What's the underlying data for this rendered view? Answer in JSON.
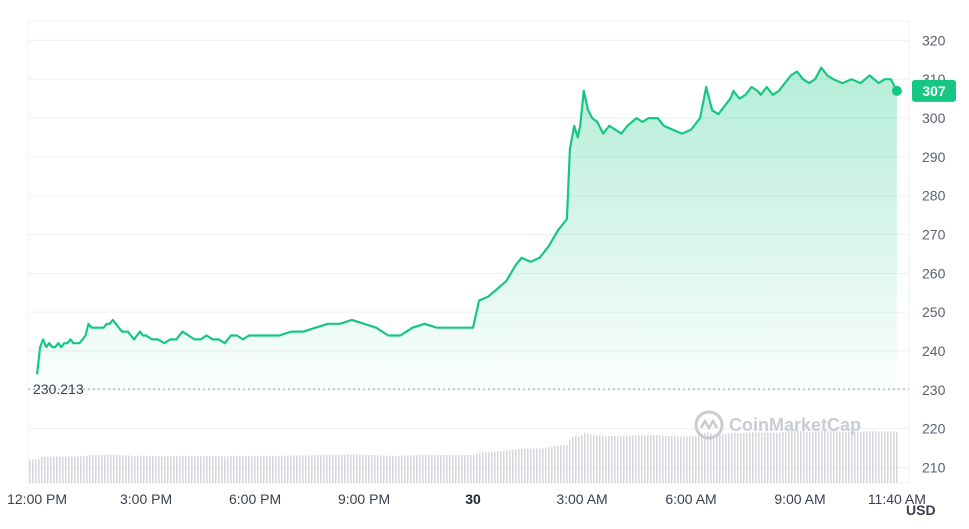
{
  "chart_data": {
    "type": "area",
    "unit": "USD",
    "y_ticks": [
      210,
      220,
      230,
      240,
      250,
      260,
      270,
      280,
      290,
      300,
      310,
      320
    ],
    "ylim": [
      206,
      325
    ],
    "x_ticks": [
      {
        "label": "12:00 PM",
        "x": 0
      },
      {
        "label": "3:00 PM",
        "x": 180
      },
      {
        "label": "6:00 PM",
        "x": 360
      },
      {
        "label": "9:00 PM",
        "x": 540
      },
      {
        "label": "30",
        "x": 720,
        "bold": true
      },
      {
        "label": "3:00 AM",
        "x": 900
      },
      {
        "label": "6:00 AM",
        "x": 1080
      },
      {
        "label": "9:00 AM",
        "x": 1260
      },
      {
        "label": "11:40 AM",
        "x": 1420
      }
    ],
    "xlim": [
      -15,
      1440
    ],
    "baseline": {
      "value": 230.213,
      "label": "230.213"
    },
    "current": {
      "value": 307,
      "label": "307"
    },
    "watermark": "CoinMarketCap",
    "colors": {
      "line": "#16c784",
      "fill": "#16c784",
      "badge": "#16c784",
      "volume": "#d6d8dd",
      "grid": "#eef0f3"
    },
    "series": [
      {
        "values": [
          [
            0,
            234
          ],
          [
            5,
            241
          ],
          [
            10,
            243
          ],
          [
            15,
            241
          ],
          [
            20,
            242
          ],
          [
            25,
            241
          ],
          [
            30,
            241
          ],
          [
            35,
            242
          ],
          [
            40,
            241
          ],
          [
            45,
            242
          ],
          [
            50,
            242
          ],
          [
            55,
            243
          ],
          [
            60,
            242
          ],
          [
            65,
            242
          ],
          [
            70,
            242
          ],
          [
            75,
            243
          ],
          [
            80,
            244
          ],
          [
            85,
            247
          ],
          [
            90,
            246
          ],
          [
            95,
            246
          ],
          [
            100,
            246
          ],
          [
            105,
            246
          ],
          [
            110,
            246
          ],
          [
            115,
            247
          ],
          [
            120,
            247
          ],
          [
            125,
            248
          ],
          [
            130,
            247
          ],
          [
            135,
            246
          ],
          [
            140,
            245
          ],
          [
            145,
            245
          ],
          [
            150,
            245
          ],
          [
            155,
            244
          ],
          [
            160,
            243
          ],
          [
            165,
            244
          ],
          [
            170,
            245
          ],
          [
            175,
            244
          ],
          [
            180,
            244
          ],
          [
            190,
            243
          ],
          [
            200,
            243
          ],
          [
            210,
            242
          ],
          [
            220,
            243
          ],
          [
            230,
            243
          ],
          [
            240,
            245
          ],
          [
            250,
            244
          ],
          [
            260,
            243
          ],
          [
            270,
            243
          ],
          [
            280,
            244
          ],
          [
            290,
            243
          ],
          [
            300,
            243
          ],
          [
            310,
            242
          ],
          [
            320,
            244
          ],
          [
            330,
            244
          ],
          [
            340,
            243
          ],
          [
            350,
            244
          ],
          [
            360,
            244
          ],
          [
            380,
            244
          ],
          [
            400,
            244
          ],
          [
            420,
            245
          ],
          [
            440,
            245
          ],
          [
            460,
            246
          ],
          [
            480,
            247
          ],
          [
            500,
            247
          ],
          [
            520,
            248
          ],
          [
            540,
            247
          ],
          [
            560,
            246
          ],
          [
            580,
            244
          ],
          [
            600,
            244
          ],
          [
            620,
            246
          ],
          [
            640,
            247
          ],
          [
            660,
            246
          ],
          [
            680,
            246
          ],
          [
            700,
            246
          ],
          [
            720,
            246
          ],
          [
            730,
            253
          ],
          [
            745,
            254
          ],
          [
            760,
            256
          ],
          [
            775,
            258
          ],
          [
            790,
            262
          ],
          [
            800,
            264
          ],
          [
            815,
            263
          ],
          [
            830,
            264
          ],
          [
            845,
            267
          ],
          [
            860,
            271
          ],
          [
            875,
            274
          ],
          [
            880,
            292
          ],
          [
            887,
            298
          ],
          [
            893,
            295
          ],
          [
            897,
            298
          ],
          [
            903,
            307
          ],
          [
            910,
            302
          ],
          [
            917,
            300
          ],
          [
            925,
            299
          ],
          [
            935,
            296
          ],
          [
            945,
            298
          ],
          [
            955,
            297
          ],
          [
            965,
            296
          ],
          [
            975,
            298
          ],
          [
            990,
            300
          ],
          [
            1000,
            299
          ],
          [
            1010,
            300
          ],
          [
            1025,
            300
          ],
          [
            1035,
            298
          ],
          [
            1050,
            297
          ],
          [
            1065,
            296
          ],
          [
            1080,
            297
          ],
          [
            1095,
            300
          ],
          [
            1105,
            308
          ],
          [
            1115,
            302
          ],
          [
            1125,
            301
          ],
          [
            1135,
            303
          ],
          [
            1145,
            305
          ],
          [
            1150,
            307
          ],
          [
            1160,
            305
          ],
          [
            1170,
            306
          ],
          [
            1180,
            308
          ],
          [
            1190,
            307
          ],
          [
            1195,
            306
          ],
          [
            1205,
            308
          ],
          [
            1215,
            306
          ],
          [
            1225,
            307
          ],
          [
            1235,
            309
          ],
          [
            1245,
            311
          ],
          [
            1255,
            312
          ],
          [
            1265,
            310
          ],
          [
            1275,
            309
          ],
          [
            1285,
            310
          ],
          [
            1295,
            313
          ],
          [
            1305,
            311
          ],
          [
            1315,
            310
          ],
          [
            1330,
            309
          ],
          [
            1345,
            310
          ],
          [
            1360,
            309
          ],
          [
            1375,
            311
          ],
          [
            1390,
            309
          ],
          [
            1400,
            310
          ],
          [
            1410,
            310
          ],
          [
            1420,
            307
          ]
        ]
      }
    ]
  }
}
